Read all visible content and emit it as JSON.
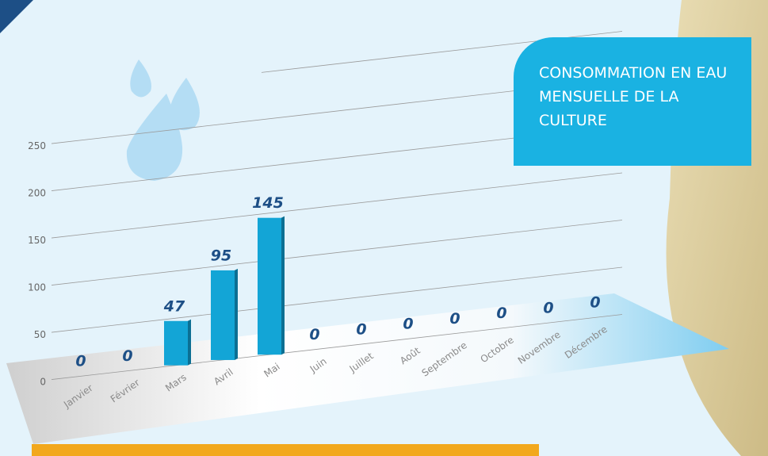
{
  "chart_data": {
    "type": "bar",
    "title": "CONSOMMATION EN EAU MENSUELLE DE LA CULTURE",
    "categories": [
      "Janvier",
      "Février",
      "Mars",
      "Avril",
      "Mai",
      "Juin",
      "Juillet",
      "Août",
      "Septembre",
      "Octobre",
      "Novembre",
      "Décembre"
    ],
    "values": [
      0,
      0,
      47,
      95,
      145,
      0,
      0,
      0,
      0,
      0,
      0,
      0
    ],
    "color": "#13a5d6",
    "ylim": [
      0,
      300
    ],
    "yticks": [
      0,
      50,
      100,
      150,
      200,
      250
    ],
    "grid": true
  }
}
